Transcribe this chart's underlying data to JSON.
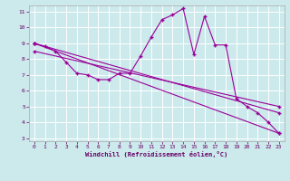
{
  "background_color": "#cce9ec",
  "grid_color": "#ffffff",
  "line_color": "#990099",
  "xlabel": "Windchill (Refroidissement éolien,°C)",
  "xlim": [
    -0.5,
    23.5
  ],
  "ylim": [
    2.8,
    11.4
  ],
  "yticks": [
    3,
    4,
    5,
    6,
    7,
    8,
    9,
    10,
    11
  ],
  "xticks": [
    0,
    1,
    2,
    3,
    4,
    5,
    6,
    7,
    8,
    9,
    10,
    11,
    12,
    13,
    14,
    15,
    16,
    17,
    18,
    19,
    20,
    21,
    22,
    23
  ],
  "series_main": {
    "x": [
      0,
      1,
      2,
      3,
      4,
      5,
      6,
      7,
      8,
      9,
      10,
      11,
      12,
      13,
      14,
      15,
      16,
      17,
      18,
      19,
      20,
      21,
      22,
      23
    ],
    "y": [
      9.0,
      8.8,
      8.5,
      7.8,
      7.1,
      7.0,
      6.7,
      6.7,
      7.1,
      7.1,
      8.2,
      9.4,
      10.5,
      10.8,
      11.2,
      8.3,
      10.7,
      8.9,
      8.9,
      5.5,
      5.0,
      4.6,
      4.0,
      3.3
    ]
  },
  "line_low": {
    "x": [
      0,
      23
    ],
    "y": [
      9.0,
      3.3
    ]
  },
  "line_mid": {
    "x": [
      0,
      23
    ],
    "y": [
      9.0,
      4.6
    ]
  },
  "line_upper": {
    "x": [
      0,
      23
    ],
    "y": [
      8.5,
      5.0
    ]
  }
}
